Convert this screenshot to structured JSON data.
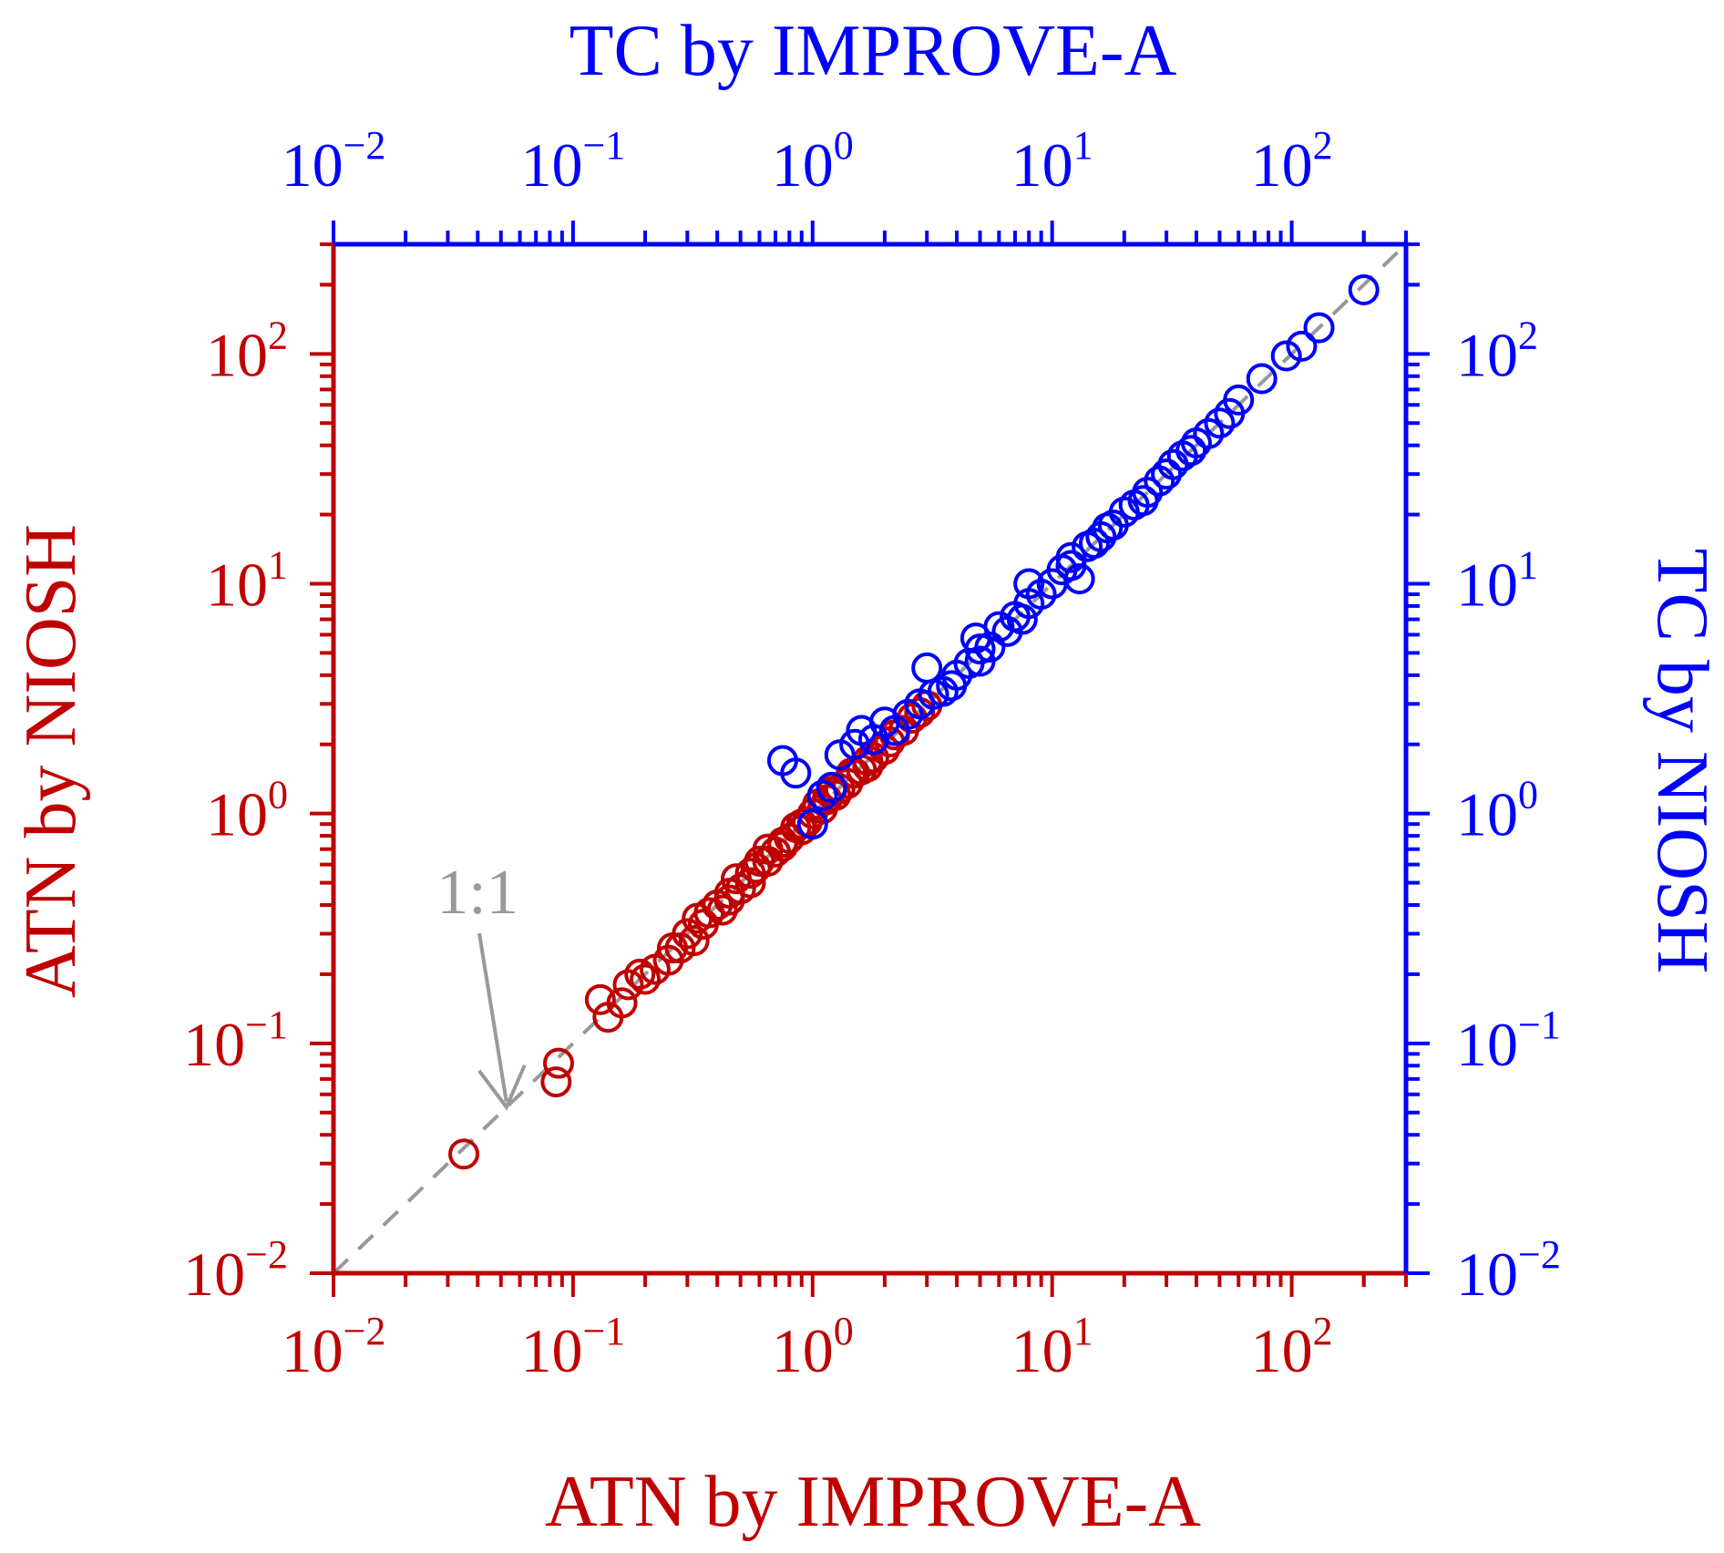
{
  "colors": {
    "atn": "#c00000",
    "tc": "#0000ff",
    "ref": "#999999",
    "background": "#ffffff"
  },
  "chart_data": {
    "type": "scatter",
    "scale": "log-log",
    "grid": false,
    "legend": "none",
    "xlim": [
      0.01,
      300
    ],
    "ylim": [
      0.01,
      300
    ],
    "axes": {
      "bottom": {
        "label": "ATN by IMPROVE-A",
        "ticks": [
          {
            "base": "10",
            "exp": "−2",
            "value": 0.01
          },
          {
            "base": "10",
            "exp": "−1",
            "value": 0.1
          },
          {
            "base": "10",
            "exp": "0",
            "value": 1
          },
          {
            "base": "10",
            "exp": "1",
            "value": 10
          },
          {
            "base": "10",
            "exp": "2",
            "value": 100
          }
        ]
      },
      "left": {
        "label": "ATN by NIOSH",
        "ticks": [
          {
            "base": "10",
            "exp": "−2",
            "value": 0.01
          },
          {
            "base": "10",
            "exp": "−1",
            "value": 0.1
          },
          {
            "base": "10",
            "exp": "0",
            "value": 1
          },
          {
            "base": "10",
            "exp": "1",
            "value": 10
          },
          {
            "base": "10",
            "exp": "2",
            "value": 100
          }
        ]
      },
      "top": {
        "label": "TC by IMPROVE-A",
        "ticks": [
          {
            "base": "10",
            "exp": "−2",
            "value": 0.01
          },
          {
            "base": "10",
            "exp": "−1",
            "value": 0.1
          },
          {
            "base": "10",
            "exp": "0",
            "value": 1
          },
          {
            "base": "10",
            "exp": "1",
            "value": 10
          },
          {
            "base": "10",
            "exp": "2",
            "value": 100
          }
        ]
      },
      "right": {
        "label": "TC by NIOSH",
        "ticks": [
          {
            "base": "10",
            "exp": "−2",
            "value": 0.01
          },
          {
            "base": "10",
            "exp": "−1",
            "value": 0.1
          },
          {
            "base": "10",
            "exp": "0",
            "value": 1
          },
          {
            "base": "10",
            "exp": "1",
            "value": 10
          },
          {
            "base": "10",
            "exp": "2",
            "value": 100
          }
        ]
      }
    },
    "reference_line": {
      "label": "1:1",
      "from": [
        0.01,
        0.01
      ],
      "to": [
        300,
        300
      ]
    },
    "annotation": {
      "text": "1:1",
      "arrow_to": [
        0.05,
        0.05
      ]
    },
    "series": [
      {
        "axes": "bottom-left",
        "color": "#c00000",
        "marker": "open-circle",
        "points": [
          [
            0.035,
            0.033
          ],
          [
            0.085,
            0.068
          ],
          [
            0.087,
            0.082
          ],
          [
            0.13,
            0.155
          ],
          [
            0.14,
            0.13
          ],
          [
            0.16,
            0.15
          ],
          [
            0.17,
            0.18
          ],
          [
            0.19,
            0.2
          ],
          [
            0.2,
            0.19
          ],
          [
            0.22,
            0.21
          ],
          [
            0.25,
            0.23
          ],
          [
            0.26,
            0.26
          ],
          [
            0.3,
            0.3
          ],
          [
            0.32,
            0.28
          ],
          [
            0.35,
            0.33
          ],
          [
            0.37,
            0.37
          ],
          [
            0.4,
            0.4
          ],
          [
            0.42,
            0.38
          ],
          [
            0.45,
            0.45
          ],
          [
            0.48,
            0.52
          ],
          [
            0.5,
            0.47
          ],
          [
            0.55,
            0.55
          ],
          [
            0.58,
            0.58
          ],
          [
            0.6,
            0.62
          ],
          [
            0.65,
            0.62
          ],
          [
            0.7,
            0.68
          ],
          [
            0.75,
            0.75
          ],
          [
            0.8,
            0.78
          ],
          [
            0.85,
            0.87
          ],
          [
            0.9,
            0.9
          ],
          [
            0.95,
            0.92
          ],
          [
            1.0,
            1.0
          ],
          [
            1.1,
            1.05
          ],
          [
            1.15,
            1.15
          ],
          [
            1.2,
            1.25
          ],
          [
            1.3,
            1.28
          ],
          [
            1.4,
            1.35
          ],
          [
            1.5,
            1.5
          ],
          [
            1.6,
            1.55
          ],
          [
            1.7,
            1.7
          ],
          [
            1.8,
            1.75
          ],
          [
            2.0,
            1.9
          ],
          [
            2.2,
            2.2
          ],
          [
            2.4,
            2.3
          ],
          [
            2.6,
            2.6
          ],
          [
            2.8,
            2.75
          ],
          [
            3.0,
            2.95
          ],
          [
            0.55,
            0.5
          ],
          [
            0.65,
            0.7
          ],
          [
            0.9,
            0.85
          ],
          [
            1.25,
            1.2
          ],
          [
            1.7,
            1.6
          ],
          [
            0.33,
            0.35
          ],
          [
            0.45,
            0.42
          ],
          [
            1.05,
            1.1
          ],
          [
            1.45,
            1.5
          ],
          [
            2.1,
            2.05
          ],
          [
            0.28,
            0.26
          ],
          [
            0.75,
            0.72
          ]
        ]
      },
      {
        "axes": "top-right",
        "color": "#0000ff",
        "marker": "open-circle",
        "points": [
          [
            0.75,
            1.7
          ],
          [
            0.85,
            1.5
          ],
          [
            1.0,
            0.9
          ],
          [
            1.1,
            1.2
          ],
          [
            1.2,
            1.3
          ],
          [
            1.3,
            1.8
          ],
          [
            1.5,
            2.0
          ],
          [
            1.6,
            2.3
          ],
          [
            1.8,
            2.1
          ],
          [
            2.0,
            2.5
          ],
          [
            2.2,
            2.3
          ],
          [
            2.5,
            2.7
          ],
          [
            2.8,
            3.0
          ],
          [
            3.0,
            4.3
          ],
          [
            3.2,
            3.3
          ],
          [
            3.5,
            3.4
          ],
          [
            4.0,
            4.0
          ],
          [
            4.5,
            4.5
          ],
          [
            4.8,
            5.8
          ],
          [
            5.0,
            5.2
          ],
          [
            5.5,
            5.3
          ],
          [
            6.0,
            6.5
          ],
          [
            6.5,
            6.2
          ],
          [
            7.0,
            7.2
          ],
          [
            8.0,
            8.2
          ],
          [
            8.0,
            10.0
          ],
          [
            9.0,
            9.0
          ],
          [
            10.0,
            10.0
          ],
          [
            11.0,
            11.5
          ],
          [
            12.0,
            12.0
          ],
          [
            13.0,
            10.5
          ],
          [
            14.0,
            14.5
          ],
          [
            15.0,
            15.0
          ],
          [
            16.0,
            16.0
          ],
          [
            17.0,
            17.5
          ],
          [
            18.0,
            18.0
          ],
          [
            20.0,
            20.5
          ],
          [
            22.0,
            22.0
          ],
          [
            25.0,
            25.0
          ],
          [
            28.0,
            28.0
          ],
          [
            30.0,
            30.0
          ],
          [
            32.0,
            33.0
          ],
          [
            35.0,
            36.0
          ],
          [
            38.0,
            38.0
          ],
          [
            40.0,
            41.0
          ],
          [
            45.0,
            45.0
          ],
          [
            50.0,
            50.0
          ],
          [
            55.0,
            55.0
          ],
          [
            60.0,
            63.0
          ],
          [
            75.0,
            78.0
          ],
          [
            95.0,
            98.0
          ],
          [
            110.0,
            108.0
          ],
          [
            130.0,
            130.0
          ],
          [
            200.0,
            190.0
          ],
          [
            5.0,
            4.6
          ],
          [
            12.0,
            13.0
          ],
          [
            24.0,
            23.0
          ],
          [
            3.8,
            3.6
          ],
          [
            7.5,
            7.0
          ]
        ]
      }
    ]
  }
}
